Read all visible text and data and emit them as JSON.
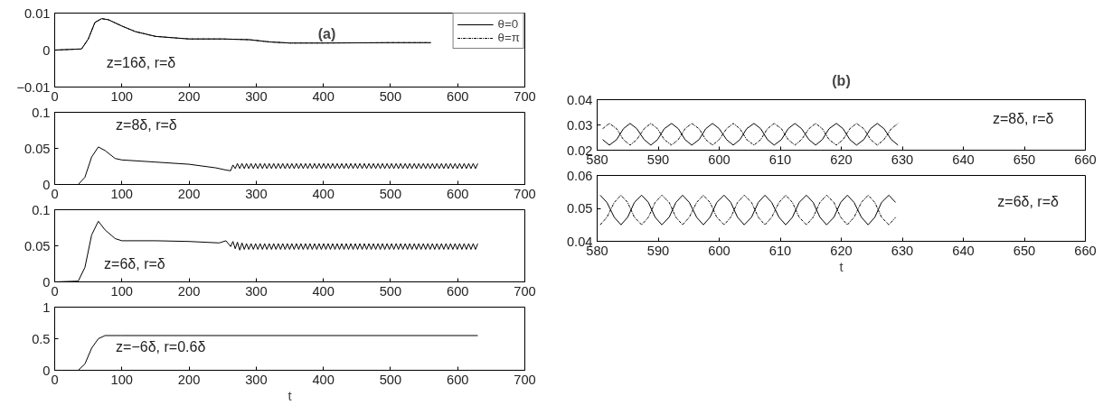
{
  "chart_data": [
    {
      "type": "line",
      "title": "(a)",
      "annotations": [
        "z=16δ, r=δ"
      ],
      "legend": "top right",
      "xlim": [
        0,
        700
      ],
      "xticks": [
        0,
        100,
        200,
        300,
        400,
        500,
        600,
        700
      ],
      "ylim": [
        -0.01,
        0.01
      ],
      "yticks": [
        {
          "value": -0.01,
          "label": "−0.01"
        },
        0,
        0.01
      ],
      "x": [
        0,
        40,
        50,
        60,
        70,
        80,
        100,
        120,
        150,
        200,
        250,
        290,
        320,
        350,
        400,
        500,
        560
      ],
      "series": [
        {
          "name": "θ=0",
          "color": "#000000",
          "line_style": "solid",
          "values": [
            0,
            0.0003,
            0.003,
            0.0075,
            0.0085,
            0.0082,
            0.0065,
            0.005,
            0.0037,
            0.003,
            0.003,
            0.0028,
            0.0022,
            0.0019,
            0.0019,
            0.002,
            0.002
          ]
        },
        {
          "name": "θ=π",
          "color": "#000000",
          "line_style": "dashdot",
          "values": [
            0,
            0.0003,
            0.003,
            0.0075,
            0.0085,
            0.0082,
            0.0065,
            0.005,
            0.0037,
            0.003,
            0.003,
            0.0028,
            0.0022,
            0.0019,
            0.0019,
            0.002,
            0.002
          ]
        }
      ]
    },
    {
      "type": "line",
      "annotations": [
        "z=8δ, r=δ"
      ],
      "xlim": [
        0,
        700
      ],
      "xticks": [
        0,
        100,
        200,
        300,
        400,
        500,
        600,
        700
      ],
      "ylim": [
        0,
        0.1
      ],
      "yticks": [
        0,
        0.05,
        0.1
      ],
      "x": [
        0,
        35,
        45,
        55,
        65,
        75,
        90,
        100,
        150,
        200,
        240,
        255,
        262,
        265.4,
        268.8,
        272.1,
        275.5,
        278.9,
        282.3,
        285.6,
        289,
        292.4,
        295.8,
        299.1,
        302.5,
        305.9,
        309.3,
        312.6,
        316,
        319.4,
        322.8,
        326.1,
        329.5,
        332.9,
        336.3,
        339.6,
        343,
        346.4,
        349.8,
        353.1,
        356.5,
        359.9,
        363.3,
        366.6,
        370,
        373.4,
        376.8,
        380.1,
        383.5,
        386.9,
        390.3,
        393.6,
        397,
        400.4,
        403.8,
        407.1,
        410.5,
        413.9,
        417.3,
        420.6,
        424,
        427.4,
        430.8,
        434.1,
        437.5,
        440.9,
        444.3,
        447.6,
        451,
        454.4,
        457.8,
        461.1,
        464.5,
        467.9,
        471.3,
        474.6,
        478,
        481.4,
        484.8,
        488.1,
        491.5,
        494.9,
        498.3,
        501.6,
        505,
        508.4,
        511.8,
        515.1,
        518.5,
        521.9,
        525.3,
        528.6,
        532,
        535.4,
        538.8,
        542.1,
        545.5,
        548.9,
        552.3,
        555.6,
        559,
        562.4,
        565.8,
        569.1,
        572.5,
        575.9,
        579.3,
        582.6,
        586,
        589.4,
        592.8,
        596.1,
        599.5,
        602.9,
        606.3,
        609.6,
        613,
        616.4,
        619.8,
        623.1,
        626.5,
        629.9
      ],
      "series": [
        {
          "color": "#000000",
          "line_style": "solid",
          "values": [
            0,
            0,
            0.01,
            0.038,
            0.052,
            0.047,
            0.036,
            0.034,
            0.031,
            0.028,
            0.023,
            0.02,
            0.019,
            0.027,
            0.022,
            0.029,
            0.022,
            0.029,
            0.022,
            0.029,
            0.022,
            0.029,
            0.022,
            0.029,
            0.022,
            0.029,
            0.022,
            0.029,
            0.022,
            0.029,
            0.022,
            0.029,
            0.022,
            0.029,
            0.022,
            0.029,
            0.022,
            0.029,
            0.022,
            0.029,
            0.022,
            0.029,
            0.022,
            0.029,
            0.022,
            0.029,
            0.022,
            0.029,
            0.022,
            0.029,
            0.022,
            0.029,
            0.022,
            0.029,
            0.022,
            0.029,
            0.022,
            0.029,
            0.022,
            0.029,
            0.022,
            0.029,
            0.022,
            0.029,
            0.022,
            0.029,
            0.022,
            0.029,
            0.022,
            0.029,
            0.022,
            0.029,
            0.022,
            0.029,
            0.022,
            0.029,
            0.022,
            0.029,
            0.022,
            0.029,
            0.022,
            0.029,
            0.022,
            0.029,
            0.022,
            0.029,
            0.022,
            0.029,
            0.022,
            0.029,
            0.022,
            0.029,
            0.022,
            0.029,
            0.022,
            0.029,
            0.022,
            0.029,
            0.022,
            0.029,
            0.022,
            0.029,
            0.022,
            0.029,
            0.022,
            0.029,
            0.022,
            0.029,
            0.022,
            0.029,
            0.022,
            0.029,
            0.022,
            0.029,
            0.022,
            0.029,
            0.022,
            0.029,
            0.022,
            0.029,
            0.022,
            0.029
          ]
        }
      ]
    },
    {
      "type": "line",
      "annotations": [
        "z=6δ, r=δ"
      ],
      "xlim": [
        0,
        700
      ],
      "xticks": [
        0,
        100,
        200,
        300,
        400,
        500,
        600,
        700
      ],
      "ylim": [
        0,
        0.1
      ],
      "yticks": [
        0,
        0.05,
        0.1
      ],
      "x": [
        0,
        35,
        45,
        55,
        65,
        75,
        90,
        100,
        150,
        200,
        245,
        255,
        262,
        265.4,
        268.8,
        272.1,
        275.5,
        278.9,
        282.3,
        285.6,
        289,
        292.4,
        295.8,
        299.1,
        302.5,
        305.9,
        309.3,
        312.6,
        316,
        319.4,
        322.8,
        326.1,
        329.5,
        332.9,
        336.3,
        339.6,
        343,
        346.4,
        349.8,
        353.1,
        356.5,
        359.9,
        363.3,
        366.6,
        370,
        373.4,
        376.8,
        380.1,
        383.5,
        386.9,
        390.3,
        393.6,
        397,
        400.4,
        403.8,
        407.1,
        410.5,
        413.9,
        417.3,
        420.6,
        424,
        427.4,
        430.8,
        434.1,
        437.5,
        440.9,
        444.3,
        447.6,
        451,
        454.4,
        457.8,
        461.1,
        464.5,
        467.9,
        471.3,
        474.6,
        478,
        481.4,
        484.8,
        488.1,
        491.5,
        494.9,
        498.3,
        501.6,
        505,
        508.4,
        511.8,
        515.1,
        518.5,
        521.9,
        525.3,
        528.6,
        532,
        535.4,
        538.8,
        542.1,
        545.5,
        548.9,
        552.3,
        555.6,
        559,
        562.4,
        565.8,
        569.1,
        572.5,
        575.9,
        579.3,
        582.6,
        586,
        589.4,
        592.8,
        596.1,
        599.5,
        602.9,
        606.3,
        609.6,
        613,
        616.4,
        619.8,
        623.1,
        626.5,
        629.9
      ],
      "series": [
        {
          "color": "#000000",
          "line_style": "solid",
          "values": [
            0,
            0.001,
            0.02,
            0.065,
            0.084,
            0.072,
            0.06,
            0.057,
            0.057,
            0.056,
            0.054,
            0.057,
            0.049,
            0.056,
            0.046,
            0.055,
            0.044,
            0.054,
            0.045,
            0.053,
            0.045,
            0.053,
            0.045,
            0.053,
            0.045,
            0.053,
            0.045,
            0.053,
            0.045,
            0.053,
            0.045,
            0.053,
            0.045,
            0.053,
            0.045,
            0.053,
            0.045,
            0.053,
            0.045,
            0.053,
            0.045,
            0.053,
            0.045,
            0.053,
            0.045,
            0.053,
            0.045,
            0.053,
            0.045,
            0.053,
            0.045,
            0.053,
            0.045,
            0.053,
            0.045,
            0.053,
            0.045,
            0.053,
            0.045,
            0.053,
            0.045,
            0.053,
            0.045,
            0.053,
            0.045,
            0.053,
            0.045,
            0.053,
            0.045,
            0.053,
            0.045,
            0.053,
            0.045,
            0.053,
            0.045,
            0.053,
            0.045,
            0.053,
            0.045,
            0.053,
            0.045,
            0.053,
            0.045,
            0.053,
            0.045,
            0.053,
            0.045,
            0.053,
            0.045,
            0.053,
            0.045,
            0.053,
            0.045,
            0.053,
            0.045,
            0.053,
            0.045,
            0.053,
            0.045,
            0.053,
            0.045,
            0.053,
            0.045,
            0.053,
            0.045,
            0.053,
            0.045,
            0.053,
            0.045,
            0.053,
            0.045,
            0.053,
            0.045,
            0.053,
            0.045,
            0.053,
            0.045,
            0.053,
            0.045,
            0.053,
            0.045,
            0.053
          ]
        }
      ]
    },
    {
      "type": "line",
      "xlabel": "t",
      "annotations": [
        "z=−6δ, r=0.6δ"
      ],
      "xlim": [
        0,
        700
      ],
      "xticks": [
        0,
        100,
        200,
        300,
        400,
        500,
        600,
        700
      ],
      "ylim": [
        0,
        1
      ],
      "yticks": [
        0,
        0.5,
        1
      ],
      "x": [
        0,
        35,
        45,
        55,
        65,
        75,
        100,
        630
      ],
      "series": [
        {
          "color": "#000000",
          "line_style": "solid",
          "values": [
            0,
            0,
            0.1,
            0.35,
            0.5,
            0.55,
            0.55,
            0.55
          ]
        }
      ]
    },
    {
      "type": "line",
      "title": "(b)",
      "annotations": [
        "z=8δ, r=δ"
      ],
      "xlim": [
        580,
        660
      ],
      "xticks": [
        580,
        590,
        600,
        610,
        620,
        630,
        640,
        650,
        660
      ],
      "ylim": [
        0.02,
        0.04
      ],
      "yticks": [
        0.02,
        0.03,
        0.04
      ],
      "x": [
        580.9,
        582.0,
        583.2,
        584.3,
        585.4,
        586.5,
        587.7,
        588.8,
        589.9,
        591.0,
        592.2,
        593.3,
        594.4,
        595.5,
        596.7,
        597.8,
        598.9,
        600.0,
        601.2,
        602.3,
        603.4,
        604.5,
        605.7,
        606.8,
        607.9,
        609.0,
        610.2,
        611.3,
        612.4,
        613.5,
        614.7,
        615.8,
        616.9,
        618.0,
        619.2,
        620.3,
        621.4,
        622.5,
        623.7,
        624.8,
        625.9,
        627.0,
        628.2,
        629.3
      ],
      "series": [
        {
          "color": "#000000",
          "line_style": "solid",
          "values": [
            0.0242,
            0.022,
            0.0242,
            0.0285,
            0.0306,
            0.0285,
            0.0242,
            0.022,
            0.0242,
            0.0285,
            0.0306,
            0.0285,
            0.0242,
            0.022,
            0.0242,
            0.0285,
            0.0306,
            0.0285,
            0.0242,
            0.022,
            0.0242,
            0.0285,
            0.0306,
            0.0285,
            0.0242,
            0.022,
            0.0242,
            0.0285,
            0.0306,
            0.0285,
            0.0242,
            0.022,
            0.0242,
            0.0285,
            0.0306,
            0.0285,
            0.0242,
            0.022,
            0.0242,
            0.0285,
            0.0306,
            0.0285,
            0.0242,
            0.022
          ]
        },
        {
          "color": "#000000",
          "line_style": "dashdot",
          "values": [
            0.0285,
            0.0306,
            0.0285,
            0.0242,
            0.022,
            0.0242,
            0.0285,
            0.0306,
            0.0285,
            0.0242,
            0.022,
            0.0242,
            0.0285,
            0.0306,
            0.0285,
            0.0242,
            0.022,
            0.0242,
            0.0285,
            0.0306,
            0.0285,
            0.0242,
            0.022,
            0.0242,
            0.0285,
            0.0306,
            0.0285,
            0.0242,
            0.022,
            0.0242,
            0.0285,
            0.0306,
            0.0285,
            0.0242,
            0.022,
            0.0242,
            0.0285,
            0.0306,
            0.0285,
            0.0242,
            0.022,
            0.0242,
            0.0285,
            0.0306
          ]
        }
      ]
    },
    {
      "type": "line",
      "xlabel": "t",
      "annotations": [
        "z=6δ, r=δ"
      ],
      "xlim": [
        580,
        660
      ],
      "xticks": [
        580,
        590,
        600,
        610,
        620,
        630,
        640,
        650,
        660
      ],
      "ylim": [
        0.04,
        0.06
      ],
      "yticks": [
        0.04,
        0.05,
        0.06
      ],
      "x": [
        580.5,
        581.6,
        582.8,
        583.9,
        585.0,
        586.1,
        587.3,
        588.4,
        589.5,
        590.6,
        591.8,
        592.9,
        594.0,
        595.1,
        596.3,
        597.4,
        598.5,
        599.6,
        600.8,
        601.9,
        603.0,
        604.1,
        605.3,
        606.4,
        607.5,
        608.6,
        609.8,
        610.9,
        612.0,
        613.1,
        614.3,
        615.4,
        616.5,
        617.6,
        618.8,
        619.9,
        621.0,
        622.1,
        623.3,
        624.4,
        625.5,
        626.6,
        627.8,
        628.9
      ],
      "series": [
        {
          "color": "#000000",
          "line_style": "solid",
          "values": [
            0.054,
            0.0518,
            0.0473,
            0.045,
            0.0473,
            0.0518,
            0.054,
            0.0518,
            0.0473,
            0.045,
            0.0473,
            0.0518,
            0.054,
            0.0518,
            0.0473,
            0.045,
            0.0473,
            0.0518,
            0.054,
            0.0518,
            0.0473,
            0.045,
            0.0473,
            0.0518,
            0.054,
            0.0518,
            0.0473,
            0.045,
            0.0473,
            0.0518,
            0.054,
            0.0518,
            0.0473,
            0.045,
            0.0473,
            0.0518,
            0.054,
            0.0518,
            0.0473,
            0.045,
            0.0473,
            0.0518,
            0.054,
            0.0518
          ]
        },
        {
          "color": "#000000",
          "line_style": "dashdot",
          "values": [
            0.045,
            0.0473,
            0.0518,
            0.054,
            0.0518,
            0.0473,
            0.045,
            0.0473,
            0.0518,
            0.054,
            0.0518,
            0.0473,
            0.045,
            0.0473,
            0.0518,
            0.054,
            0.0518,
            0.0473,
            0.045,
            0.0473,
            0.0518,
            0.054,
            0.0518,
            0.0473,
            0.045,
            0.0473,
            0.0518,
            0.054,
            0.0518,
            0.0473,
            0.045,
            0.0473,
            0.0518,
            0.054,
            0.0518,
            0.0473,
            0.045,
            0.0473,
            0.0518,
            0.054,
            0.0518,
            0.0473,
            0.045,
            0.0473
          ]
        }
      ]
    }
  ]
}
